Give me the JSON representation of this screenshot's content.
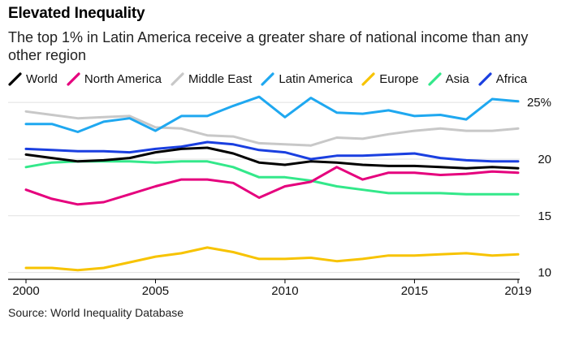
{
  "header": {
    "title": "Elevated Inequality",
    "subtitle": "The top 1% in Latin America receive a greater share of national income than any other region"
  },
  "source": "Source: World Inequality Database",
  "colors": {
    "World": "#000000",
    "North America": "#e5007d",
    "Middle East": "#c8c8c8",
    "Latin America": "#1fa8f0",
    "Europe": "#f7c300",
    "Asia": "#33e88a",
    "Africa": "#1a3fe0"
  },
  "chart_data": {
    "type": "line",
    "title": "Elevated Inequality",
    "subtitle": "The top 1% in Latin America receive a greater share of national income than any other region",
    "xlabel": "",
    "ylabel": "",
    "x": [
      2000,
      2001,
      2002,
      2003,
      2004,
      2005,
      2006,
      2007,
      2008,
      2009,
      2010,
      2011,
      2012,
      2013,
      2014,
      2015,
      2016,
      2017,
      2018,
      2019
    ],
    "xticks": [
      "2000",
      "2005",
      "2010",
      "2015",
      "2019"
    ],
    "yticks": [
      {
        "value": 25,
        "label": "25%"
      },
      {
        "value": 20,
        "label": "20"
      },
      {
        "value": 15,
        "label": "15"
      },
      {
        "value": 10,
        "label": "10"
      }
    ],
    "ylim": [
      9.4,
      25.8
    ],
    "xlim": [
      2000,
      2019
    ],
    "grid": "horizontal",
    "legend_position": "top",
    "series": [
      {
        "name": "World",
        "values": [
          20.4,
          20.1,
          19.8,
          19.9,
          20.1,
          20.6,
          20.9,
          21.0,
          20.5,
          19.7,
          19.5,
          19.8,
          19.7,
          19.5,
          19.4,
          19.4,
          19.3,
          19.2,
          19.3,
          19.2
        ]
      },
      {
        "name": "North America",
        "values": [
          17.3,
          16.5,
          16.0,
          16.2,
          16.9,
          17.6,
          18.2,
          18.2,
          17.9,
          16.6,
          17.6,
          18.0,
          19.3,
          18.2,
          18.8,
          18.8,
          18.6,
          18.7,
          18.9,
          18.8
        ]
      },
      {
        "name": "Middle East",
        "values": [
          24.2,
          23.9,
          23.6,
          23.7,
          23.8,
          22.8,
          22.7,
          22.1,
          22.0,
          21.4,
          21.3,
          21.2,
          21.9,
          21.8,
          22.2,
          22.5,
          22.7,
          22.5,
          22.5,
          22.7
        ]
      },
      {
        "name": "Latin America",
        "values": [
          23.1,
          23.1,
          22.4,
          23.3,
          23.6,
          22.5,
          23.8,
          23.8,
          24.7,
          25.5,
          23.7,
          25.4,
          24.1,
          24.0,
          24.3,
          23.8,
          23.9,
          23.5,
          25.3,
          25.1
        ]
      },
      {
        "name": "Europe",
        "values": [
          10.4,
          10.4,
          10.2,
          10.4,
          10.9,
          11.4,
          11.7,
          12.2,
          11.8,
          11.2,
          11.2,
          11.3,
          11.0,
          11.2,
          11.5,
          11.5,
          11.6,
          11.7,
          11.5,
          11.6
        ]
      },
      {
        "name": "Asia",
        "values": [
          19.3,
          19.7,
          19.8,
          19.8,
          19.8,
          19.7,
          19.8,
          19.8,
          19.3,
          18.4,
          18.4,
          18.1,
          17.6,
          17.3,
          17.0,
          17.0,
          17.0,
          16.9,
          16.9,
          16.9
        ]
      },
      {
        "name": "Africa",
        "values": [
          20.9,
          20.8,
          20.7,
          20.7,
          20.6,
          20.9,
          21.1,
          21.5,
          21.3,
          20.8,
          20.6,
          20.0,
          20.3,
          20.3,
          20.4,
          20.5,
          20.1,
          19.9,
          19.8,
          19.8
        ]
      }
    ]
  }
}
